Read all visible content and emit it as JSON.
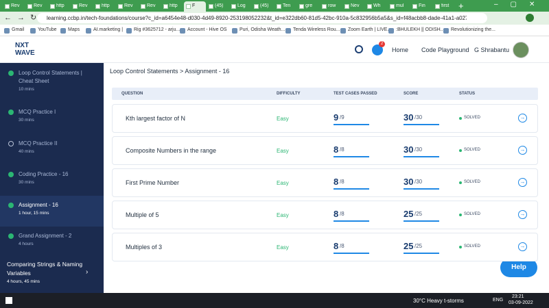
{
  "browser": {
    "tabs": [
      "Rev",
      "Rev",
      "http",
      "Rev",
      "http",
      "Rev",
      "Rev",
      "http",
      "F",
      "(45)",
      "Log",
      "(45)",
      "Ten",
      "gre",
      "row",
      "Nev",
      "Wh",
      "mul",
      "Fin",
      "first"
    ],
    "active_tab": 8,
    "url": "learning.ccbp.in/tech-foundations/course?c_id=a6454e48-d030-4d49-8920-253198052232&t_id=e322db60-81d5-42bc-910a-5c832956b5a5&s_id=f48acbb8-dade-41a1-a027-4f3d...",
    "bookmarks": [
      "Gmail",
      "YouTube",
      "Maps",
      "AI.marketing |",
      "Rig #3625712 - arju...",
      "Account - Hive OS",
      "Puri, Odisha Weath...",
      "Tenda Wireless Rou...",
      "Zoom Earth | LIVE...",
      ":BHULEKH || ODISH...",
      "Revolutionizing the..."
    ]
  },
  "header": {
    "logo_top": "NXT",
    "logo_bottom": "WAVE",
    "notification_count": "2",
    "nav": [
      "Home",
      "Code Playground"
    ],
    "user": "G Shrabantu"
  },
  "sidebar": {
    "items": [
      {
        "title": "Loop Control Statements | Cheat Sheet",
        "duration": "10 mins"
      },
      {
        "title": "MCQ Practice I",
        "duration": "30 mins"
      },
      {
        "title": "MCQ Practice II",
        "duration": "40 mins"
      },
      {
        "title": "Coding Practice - 16",
        "duration": "30 mins"
      },
      {
        "title": "Assignment - 16",
        "duration": "1 hour, 15 mins"
      },
      {
        "title": "Grand Assignment - 2",
        "duration": "4 hours"
      }
    ],
    "active": 4,
    "next_section": {
      "title": "Comparing Strings & Naming Variables",
      "duration": "4 hours, 45 mins"
    }
  },
  "breadcrumb": "Loop Control Statements > Assignment - 16",
  "table": {
    "headers": [
      "QUESTION",
      "DIFFICULTY",
      "TEST CASES PASSED",
      "SCORE",
      "STATUS"
    ],
    "rows": [
      {
        "question": "Kth largest factor of N",
        "difficulty": "Easy",
        "passed": "9",
        "cases": "/9",
        "score": "30",
        "max": "/30",
        "status": "SOLVED"
      },
      {
        "question": "Composite Numbers in the range",
        "difficulty": "Easy",
        "passed": "8",
        "cases": "/8",
        "score": "30",
        "max": "/30",
        "status": "SOLVED"
      },
      {
        "question": "First Prime Number",
        "difficulty": "Easy",
        "passed": "8",
        "cases": "/8",
        "score": "30",
        "max": "/30",
        "status": "SOLVED"
      },
      {
        "question": "Multiple of 5",
        "difficulty": "Easy",
        "passed": "8",
        "cases": "/8",
        "score": "25",
        "max": "/25",
        "status": "SOLVED"
      },
      {
        "question": "Multiples of 3",
        "difficulty": "Easy",
        "passed": "8",
        "cases": "/8",
        "score": "25",
        "max": "/25",
        "status": "SOLVED"
      }
    ]
  },
  "help": "Help",
  "taskbar": {
    "weather": "30°C  Heavy t-storms",
    "lang": "ENG",
    "time": "23:21",
    "date": "03-09-2022"
  }
}
